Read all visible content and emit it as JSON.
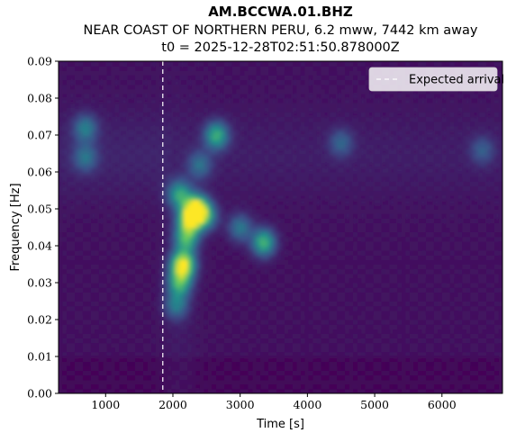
{
  "title": "AM.BCCWA.01.BHZ",
  "subtitle": "NEAR COAST OF NORTHERN PERU, 6.2 mww, 7442 km away",
  "t0_label": "t0 = 2025-12-28T02:51:50.878000Z",
  "chart_data": {
    "type": "heatmap",
    "title": "AM.BCCWA.01.BHZ",
    "xlabel": "Time [s]",
    "ylabel": "Frequency [Hz]",
    "xlim": [
      300,
      6900
    ],
    "ylim": [
      0.0,
      0.09
    ],
    "xticks": [
      1000,
      2000,
      3000,
      4000,
      5000,
      6000
    ],
    "yticks": [
      0.0,
      0.01,
      0.02,
      0.03,
      0.04,
      0.05,
      0.06,
      0.07,
      0.08,
      0.09
    ],
    "ytick_labels": [
      "0.00",
      "0.01",
      "0.02",
      "0.03",
      "0.04",
      "0.05",
      "0.06",
      "0.07",
      "0.08",
      "0.09"
    ],
    "colormap": "viridis",
    "grid": false,
    "legend": {
      "placement": "top-right",
      "entries": [
        "Expected arrival"
      ]
    },
    "expected_arrival_s": 1850,
    "energy_peaks": [
      {
        "time_s": 2350,
        "freq_hz": 0.05,
        "intensity": 1.0
      },
      {
        "time_s": 2250,
        "freq_hz": 0.047,
        "intensity": 0.75
      },
      {
        "time_s": 2150,
        "freq_hz": 0.035,
        "intensity": 0.95
      },
      {
        "time_s": 2100,
        "freq_hz": 0.03,
        "intensity": 0.55
      },
      {
        "time_s": 2200,
        "freq_hz": 0.042,
        "intensity": 0.55
      },
      {
        "time_s": 2100,
        "freq_hz": 0.054,
        "intensity": 0.5
      },
      {
        "time_s": 2050,
        "freq_hz": 0.024,
        "intensity": 0.35
      },
      {
        "time_s": 2500,
        "freq_hz": 0.048,
        "intensity": 0.4
      },
      {
        "time_s": 2650,
        "freq_hz": 0.07,
        "intensity": 0.55
      },
      {
        "time_s": 3350,
        "freq_hz": 0.041,
        "intensity": 0.6
      },
      {
        "time_s": 3000,
        "freq_hz": 0.045,
        "intensity": 0.35
      },
      {
        "time_s": 2400,
        "freq_hz": 0.062,
        "intensity": 0.3
      },
      {
        "time_s": 700,
        "freq_hz": 0.072,
        "intensity": 0.35
      },
      {
        "time_s": 700,
        "freq_hz": 0.064,
        "intensity": 0.3
      },
      {
        "time_s": 4500,
        "freq_hz": 0.068,
        "intensity": 0.25
      },
      {
        "time_s": 6600,
        "freq_hz": 0.066,
        "intensity": 0.22
      }
    ]
  }
}
